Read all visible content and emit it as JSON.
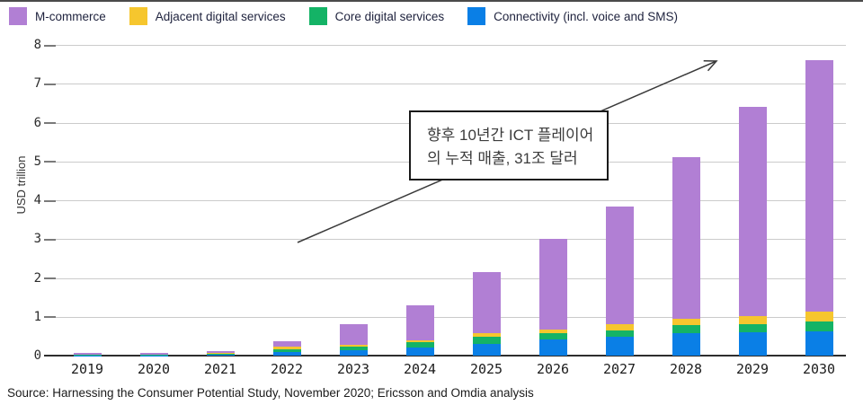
{
  "legend": {
    "items": [
      {
        "label": "M-commerce",
        "color": "#b17fd4"
      },
      {
        "label": "Adjacent digital services",
        "color": "#f6c62e"
      },
      {
        "label": "Core digital services",
        "color": "#14b366"
      },
      {
        "label": "Connectivity (incl. voice and SMS)",
        "color": "#0a7fe6"
      }
    ]
  },
  "chart_data": {
    "type": "bar",
    "stacked": true,
    "title": "",
    "xlabel": "",
    "ylabel": "USD trillion",
    "ylim": [
      0,
      8
    ],
    "yticks": [
      0,
      1,
      2,
      3,
      4,
      5,
      6,
      7,
      8
    ],
    "grid": true,
    "legend_position": "top",
    "categories": [
      "2019",
      "2020",
      "2021",
      "2022",
      "2023",
      "2024",
      "2025",
      "2026",
      "2027",
      "2028",
      "2029",
      "2030"
    ],
    "series": [
      {
        "name": "Connectivity (incl. voice and SMS)",
        "color": "#0a7fe6",
        "values": [
          0.01,
          0.01,
          0.03,
          0.1,
          0.14,
          0.22,
          0.31,
          0.42,
          0.48,
          0.58,
          0.6,
          0.63
        ]
      },
      {
        "name": "Core digital services",
        "color": "#14b366",
        "values": [
          0.005,
          0.005,
          0.02,
          0.07,
          0.1,
          0.12,
          0.18,
          0.17,
          0.17,
          0.2,
          0.22,
          0.26
        ]
      },
      {
        "name": "Adjacent digital services",
        "color": "#f6c62e",
        "values": [
          0.005,
          0.005,
          0.02,
          0.06,
          0.04,
          0.05,
          0.08,
          0.08,
          0.15,
          0.16,
          0.2,
          0.24
        ]
      },
      {
        "name": "M-commerce",
        "color": "#b17fd4",
        "values": [
          0.04,
          0.04,
          0.05,
          0.13,
          0.53,
          0.91,
          1.58,
          2.33,
          3.05,
          4.16,
          5.38,
          6.47
        ]
      }
    ],
    "totals": [
      0.06,
      0.06,
      0.12,
      0.36,
      0.81,
      1.3,
      2.15,
      3.0,
      3.85,
      5.1,
      6.4,
      7.6
    ]
  },
  "annotation": {
    "line1": "향후 10년간 ICT 플레이어",
    "line2": "의 누적 매출, 31조 달러"
  },
  "source": "Source: Harnessing the Consumer Potential Study, November 2020; Ericsson and Omdia analysis"
}
